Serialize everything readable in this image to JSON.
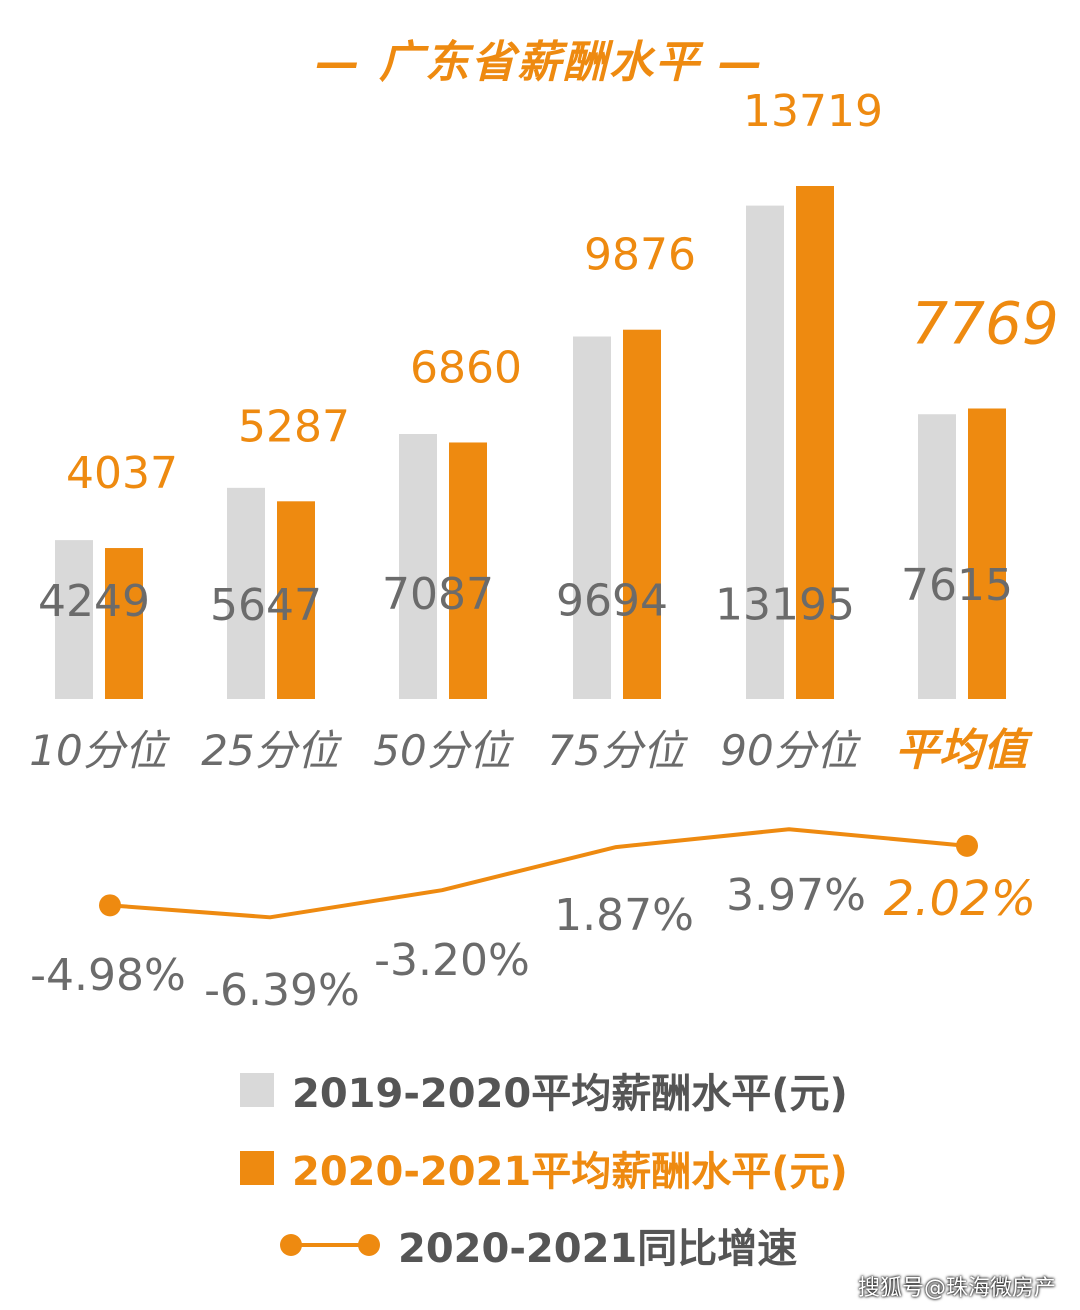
{
  "colors": {
    "gray": "#d9d9d9",
    "orange": "#ee8a10",
    "label_gray": "#6b6b6b",
    "line": "#ee8a10"
  },
  "chart_data": {
    "type": "bar",
    "title": "— 广东省薪酬水平 —",
    "categories": [
      "10分位",
      "25分位",
      "50分位",
      "75分位",
      "90分位",
      "平均值"
    ],
    "series": [
      {
        "name": "2019-2020平均薪酬水平(元)",
        "values": [
          4249,
          5647,
          7087,
          9694,
          13195,
          7615
        ]
      },
      {
        "name": "2020-2021平均薪酬水平(元)",
        "values": [
          4037,
          5287,
          6860,
          9876,
          13719,
          7769
        ]
      }
    ],
    "growth": {
      "name": "2020-2021同比增速",
      "values": [
        -4.98,
        -6.39,
        -3.2,
        1.87,
        3.97,
        2.02
      ],
      "labels": [
        "-4.98%",
        "-6.39%",
        "-3.20%",
        "1.87%",
        "3.97%",
        "2.02%"
      ]
    },
    "ylim": [
      0,
      14500
    ],
    "highlight_category": "平均值"
  },
  "legend": {
    "item1": "2019-2020平均薪酬水平(元)",
    "item2": "2020-2021平均薪酬水平(元)",
    "item3": "2020-2021同比增速"
  },
  "watermark": "搜狐号@珠海微房产"
}
